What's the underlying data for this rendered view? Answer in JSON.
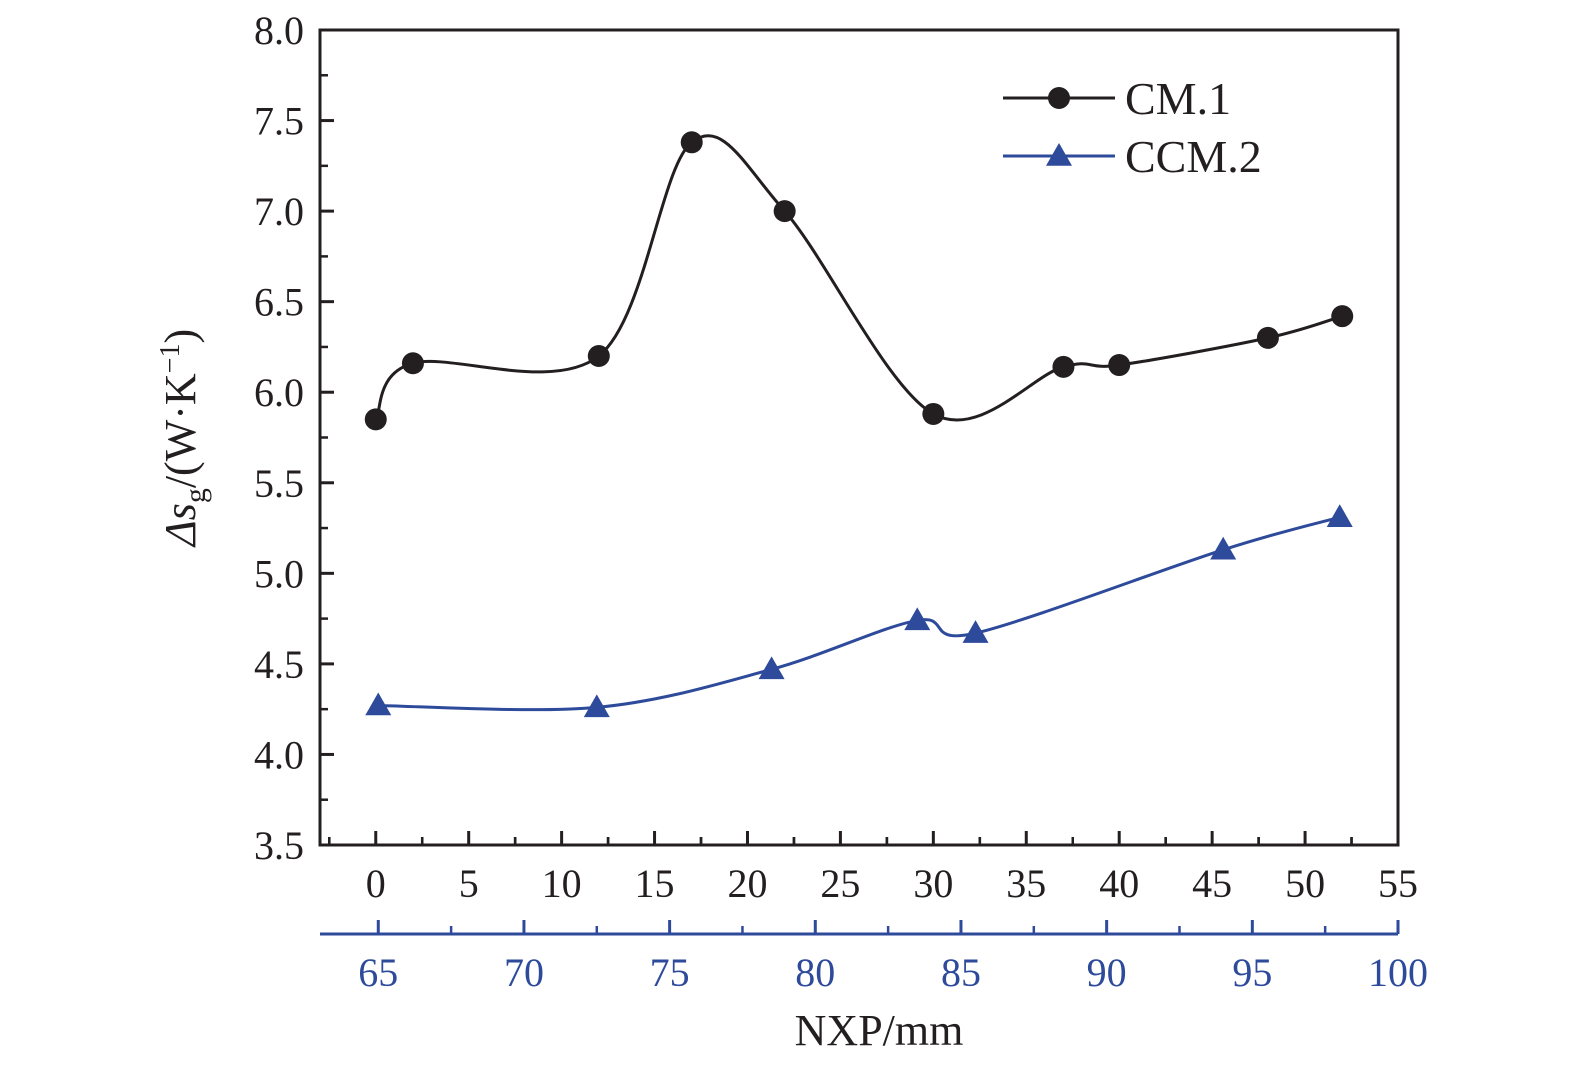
{
  "chart_data": {
    "type": "line",
    "ylabel": {
      "prefix": "Δs",
      "sub": "g",
      "unit": "/(W·K",
      "sup": "−1",
      "close": ")"
    },
    "xlabel": "NXP/mm",
    "ylim": [
      3.5,
      8.0
    ],
    "yticks": [
      "3.5",
      "4.0",
      "4.5",
      "5.0",
      "5.5",
      "6.0",
      "6.5",
      "7.0",
      "7.5",
      "8.0"
    ],
    "xlim_bottom": [
      -3,
      55
    ],
    "xticks_bottom": [
      "0",
      "5",
      "10",
      "15",
      "20",
      "25",
      "30",
      "35",
      "40",
      "45",
      "50",
      "55"
    ],
    "xlim_top_axis": [
      63,
      100
    ],
    "xticks_top_axis": [
      "65",
      "70",
      "75",
      "80",
      "85",
      "90",
      "95",
      "100"
    ],
    "series": [
      {
        "name": "CM.1",
        "axis": "bottom",
        "color": "#231f20",
        "marker": "circle",
        "x": [
          0,
          2,
          12,
          17,
          22,
          30,
          37,
          40,
          48,
          52
        ],
        "y": [
          5.85,
          6.16,
          6.2,
          7.38,
          7.0,
          5.88,
          6.14,
          6.15,
          6.3,
          6.42
        ]
      },
      {
        "name": "CCM.2",
        "axis": "blue",
        "color": "#2e4a9b",
        "marker": "triangle",
        "x": [
          65,
          72.5,
          78.5,
          83.5,
          85.5,
          94,
          98
        ],
        "y": [
          4.27,
          4.26,
          4.47,
          4.74,
          4.67,
          5.13,
          5.31
        ]
      }
    ],
    "legend": {
      "position": "top-right",
      "entries": [
        "CM.1",
        "CCM.2"
      ]
    },
    "grid": false
  }
}
